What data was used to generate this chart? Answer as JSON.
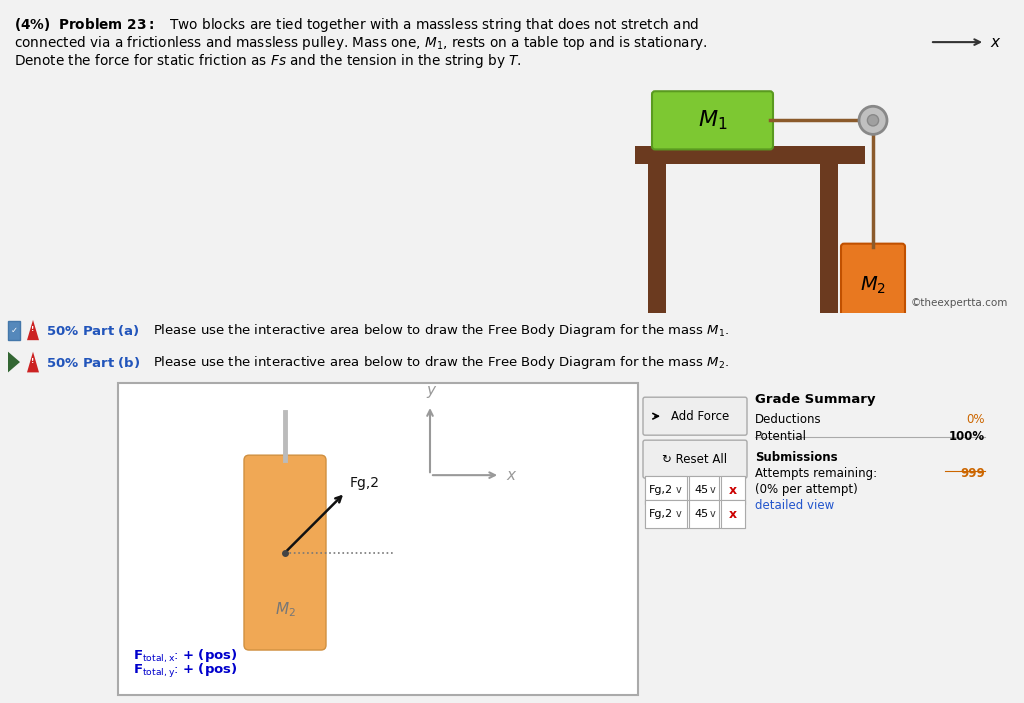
{
  "bg_color": "#f2f2f2",
  "white": "#ffffff",
  "table_color": "#6B3A1F",
  "m1_color": "#7DC832",
  "m1_edge": "#5a9a20",
  "m2_color": "#E87820",
  "m2_edge": "#c05000",
  "m2_fbd_color": "#F0A855",
  "m2_fbd_edge": "#d09040",
  "pulley_color": "#c0c0c0",
  "pulley_edge": "#888888",
  "string_color": "#8B5A2B",
  "axis_color": "#999999",
  "copyright": "©theexpertta.com",
  "grade_summary": {
    "title": "Grade Summary",
    "deductions_label": "Deductions",
    "deductions_value": "0%",
    "potential_label": "Potential",
    "potential_value": "100%",
    "submissions_label": "Submissions",
    "attempts_label": "Attempts remaining:",
    "attempts_value": "999",
    "percent_label": "(0% per attempt)",
    "detail_label": "detailed view"
  }
}
